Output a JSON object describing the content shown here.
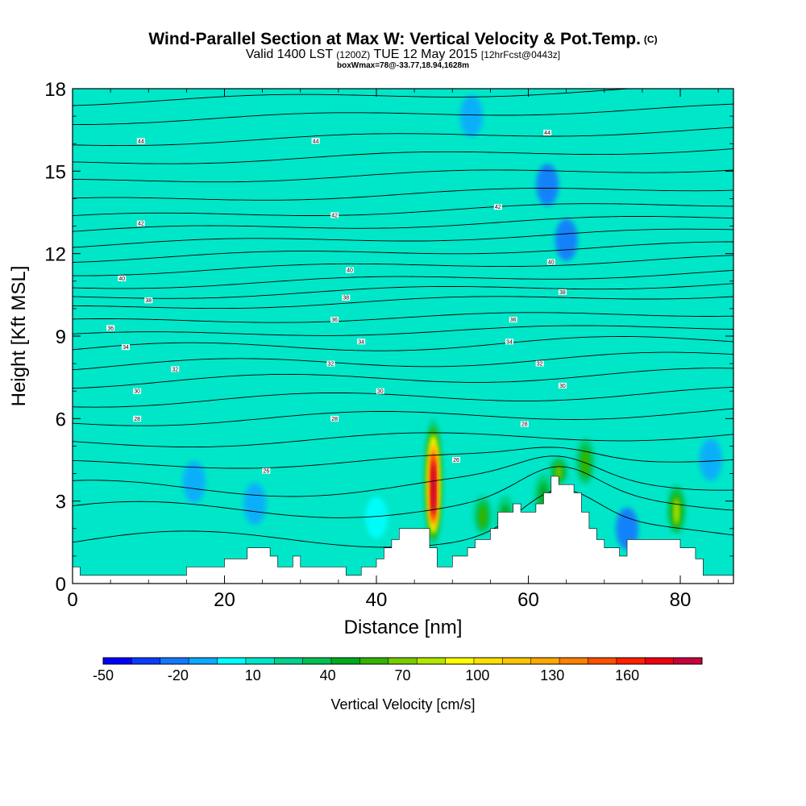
{
  "title": "Wind-Parallel Section at Max W: Vertical Velocity & Pot.Temp.",
  "title_mark": "(C)",
  "subtitle_a": "Valid 1400 LST",
  "subtitle_b": "(1200Z)",
  "subtitle_c": "TUE 12 May 2015",
  "subtitle_d": "[12hrFcst@0443z]",
  "subtitle2": "boxWmax=78@-33.77,18.94,1628m",
  "chart_data": {
    "type": "heatmap",
    "xlabel": "Distance [nm]",
    "ylabel": "Height [Kft MSL]",
    "xlim": [
      0,
      87
    ],
    "ylim": [
      0,
      18
    ],
    "xticks": [
      0,
      20,
      40,
      60,
      80
    ],
    "yticks": [
      0,
      3,
      6,
      9,
      12,
      15,
      18
    ],
    "background_value_cm_s": 0,
    "colorbar": {
      "label": "Vertical Velocity [cm/s]",
      "tick_labels": [
        "-50",
        "-20",
        "10",
        "40",
        "70",
        "100",
        "130",
        "160"
      ],
      "tick_values": [
        -50,
        -20,
        10,
        40,
        70,
        100,
        130,
        160
      ],
      "range": [
        -50,
        180
      ],
      "step": 10,
      "colors": [
        "#0000ff",
        "#0a3cff",
        "#1478ff",
        "#0aaaff",
        "#00ffff",
        "#00e6c8",
        "#00d28c",
        "#00c050",
        "#00aa1e",
        "#32b400",
        "#78cc00",
        "#b4e600",
        "#ffff00",
        "#ffe000",
        "#ffc400",
        "#ffa800",
        "#ff8000",
        "#ff5000",
        "#ff2000",
        "#ee0010",
        "#c8003c"
      ]
    },
    "terrain_profile": {
      "x": [
        0,
        1,
        1,
        15,
        15,
        20,
        20,
        23,
        23,
        26,
        26,
        27,
        27,
        29,
        29,
        30,
        30,
        32,
        32,
        36,
        36,
        38,
        38,
        40,
        40,
        41,
        41,
        42,
        42,
        43,
        43,
        44,
        44,
        47,
        47,
        48,
        48,
        50,
        50,
        52,
        52,
        53,
        53,
        55,
        55,
        56,
        56,
        58,
        58,
        59,
        59,
        61,
        61,
        62,
        62,
        63,
        63,
        64,
        64,
        66,
        66,
        67,
        67,
        68,
        68,
        69,
        69,
        70,
        70,
        72,
        72,
        73,
        73,
        80,
        80,
        82,
        82,
        83,
        83,
        87
      ],
      "y": [
        0.6,
        0.6,
        0.3,
        0.3,
        0.6,
        0.6,
        0.9,
        0.9,
        1.3,
        1.3,
        1.0,
        1.0,
        0.6,
        0.6,
        1.0,
        1.0,
        0.6,
        0.6,
        0.6,
        0.6,
        0.3,
        0.3,
        0.6,
        0.6,
        0.9,
        0.9,
        1.3,
        1.3,
        1.6,
        1.6,
        2.0,
        2.0,
        2.0,
        2.0,
        1.3,
        1.3,
        0.6,
        0.6,
        1.0,
        1.0,
        1.3,
        1.3,
        1.6,
        1.6,
        2.0,
        2.0,
        2.6,
        2.6,
        2.9,
        2.9,
        2.6,
        2.6,
        2.9,
        2.9,
        3.3,
        3.3,
        3.9,
        3.9,
        3.6,
        3.6,
        3.3,
        3.3,
        2.6,
        2.6,
        2.0,
        2.0,
        1.6,
        1.6,
        1.3,
        1.3,
        1.0,
        1.0,
        1.6,
        1.6,
        1.3,
        1.3,
        0.9,
        0.9,
        0.3,
        0.3
      ]
    },
    "updrafts": [
      {
        "x": 47.5,
        "top_kft": 6.0,
        "bottom_kft": 1.4,
        "peak_cm_s": 175
      },
      {
        "x": 64,
        "top_kft": 4.6,
        "bottom_kft": 3.6,
        "peak_cm_s": 50
      },
      {
        "x": 67.5,
        "top_kft": 5.3,
        "bottom_kft": 3.6,
        "peak_cm_s": 45
      },
      {
        "x": 79.5,
        "top_kft": 3.6,
        "bottom_kft": 1.8,
        "peak_cm_s": 60
      },
      {
        "x": 62,
        "top_kft": 4.0,
        "bottom_kft": 2.4,
        "peak_cm_s": 35
      },
      {
        "x": 54,
        "top_kft": 3.2,
        "bottom_kft": 1.8,
        "peak_cm_s": 40
      },
      {
        "x": 57,
        "top_kft": 3.2,
        "bottom_kft": 1.6,
        "peak_cm_s": 30
      }
    ],
    "downdrafts": [
      {
        "x": 16,
        "y": 3.7,
        "value_cm_s": -15
      },
      {
        "x": 24,
        "y": 2.9,
        "value_cm_s": -20
      },
      {
        "x": 40,
        "y": 2.4,
        "value_cm_s": -10
      },
      {
        "x": 62.5,
        "y": 14.5,
        "value_cm_s": -30
      },
      {
        "x": 65,
        "y": 12.5,
        "value_cm_s": -25
      },
      {
        "x": 52.5,
        "y": 17,
        "value_cm_s": -15
      },
      {
        "x": 73,
        "y": 2.0,
        "value_cm_s": -25
      },
      {
        "x": 84,
        "y": 4.5,
        "value_cm_s": -15
      }
    ],
    "isentrope_labels": [
      {
        "x": 9,
        "y": 16.1,
        "text": "44"
      },
      {
        "x": 32,
        "y": 16.1,
        "text": "44"
      },
      {
        "x": 62.5,
        "y": 16.4,
        "text": "44"
      },
      {
        "x": 9,
        "y": 13.1,
        "text": "42"
      },
      {
        "x": 34.5,
        "y": 13.4,
        "text": "42"
      },
      {
        "x": 56,
        "y": 13.7,
        "text": "42"
      },
      {
        "x": 6.5,
        "y": 11.1,
        "text": "40"
      },
      {
        "x": 36.5,
        "y": 11.4,
        "text": "40"
      },
      {
        "x": 63,
        "y": 11.7,
        "text": "40"
      },
      {
        "x": 10,
        "y": 10.3,
        "text": "38"
      },
      {
        "x": 36,
        "y": 10.4,
        "text": "38"
      },
      {
        "x": 64.5,
        "y": 10.6,
        "text": "38"
      },
      {
        "x": 5,
        "y": 9.3,
        "text": "36"
      },
      {
        "x": 34.5,
        "y": 9.6,
        "text": "36"
      },
      {
        "x": 58,
        "y": 9.6,
        "text": "36"
      },
      {
        "x": 7,
        "y": 8.6,
        "text": "34"
      },
      {
        "x": 38,
        "y": 8.8,
        "text": "34"
      },
      {
        "x": 57.5,
        "y": 8.8,
        "text": "34"
      },
      {
        "x": 13.5,
        "y": 7.8,
        "text": "32"
      },
      {
        "x": 34,
        "y": 8.0,
        "text": "32"
      },
      {
        "x": 61.5,
        "y": 8.0,
        "text": "32"
      },
      {
        "x": 8.5,
        "y": 7.0,
        "text": "30"
      },
      {
        "x": 40.5,
        "y": 7.0,
        "text": "30"
      },
      {
        "x": 64.5,
        "y": 7.2,
        "text": "30"
      },
      {
        "x": 8.5,
        "y": 6.0,
        "text": "28"
      },
      {
        "x": 34.5,
        "y": 6.0,
        "text": "28"
      },
      {
        "x": 59.5,
        "y": 5.8,
        "text": "28"
      },
      {
        "x": 50.5,
        "y": 4.5,
        "text": "26"
      },
      {
        "x": 25.5,
        "y": 4.1,
        "text": "26"
      }
    ]
  }
}
